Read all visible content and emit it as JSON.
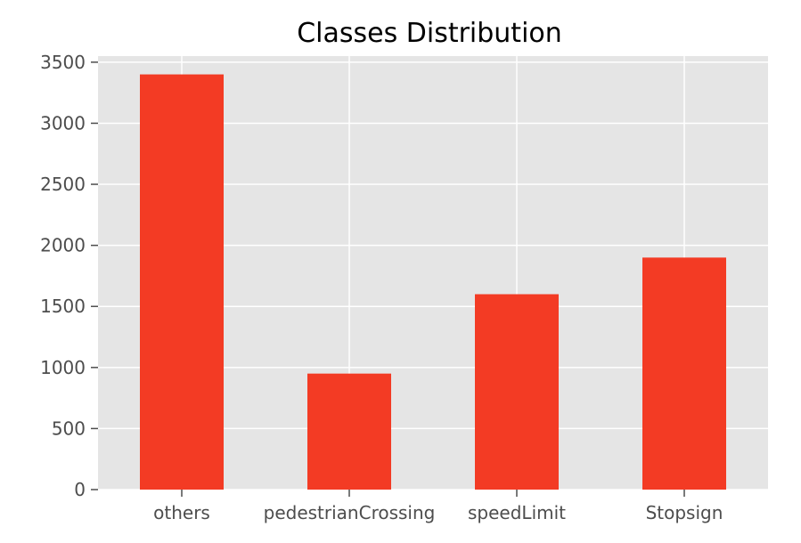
{
  "chart_data": {
    "type": "bar",
    "title": "Classes Distribution",
    "xlabel": "",
    "ylabel": "",
    "categories": [
      "others",
      "pedestrianCrossing",
      "speedLimit",
      "Stopsign"
    ],
    "values": [
      3400,
      950,
      1600,
      1900
    ],
    "ylim": [
      0,
      3550
    ],
    "yticks": [
      0,
      500,
      1000,
      1500,
      2000,
      2500,
      3000,
      3500
    ],
    "grid": true,
    "bar_color": "#f33b24",
    "background_color": "#e5e5e5",
    "grid_color": "#ffffff"
  }
}
